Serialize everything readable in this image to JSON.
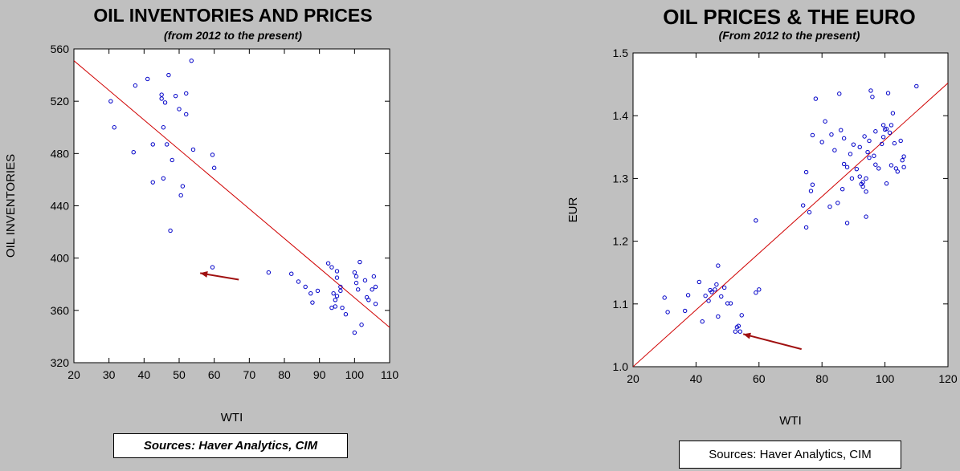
{
  "chart_data": [
    {
      "type": "scatter",
      "title": "OIL INVENTORIES AND PRICES",
      "subtitle": "(from 2012 to the present)",
      "xlabel": "WTI",
      "ylabel": "OIL INVENTORIES",
      "xlim": [
        20,
        110
      ],
      "ylim": [
        320,
        560
      ],
      "xticks": [
        "20",
        "30",
        "40",
        "50",
        "60",
        "70",
        "80",
        "90",
        "100",
        "110"
      ],
      "yticks": [
        "320",
        "360",
        "400",
        "440",
        "480",
        "520",
        "560"
      ],
      "points": [
        [
          53.5,
          551
        ],
        [
          30.5,
          520
        ],
        [
          31.5,
          500
        ],
        [
          37.5,
          532
        ],
        [
          41,
          537
        ],
        [
          37,
          481
        ],
        [
          42.5,
          487
        ],
        [
          45,
          525
        ],
        [
          45,
          522
        ],
        [
          46,
          519
        ],
        [
          47,
          540
        ],
        [
          49,
          524
        ],
        [
          50,
          514
        ],
        [
          52,
          526
        ],
        [
          52,
          510
        ],
        [
          45.5,
          500
        ],
        [
          46.5,
          487
        ],
        [
          48,
          475
        ],
        [
          54,
          483
        ],
        [
          42.5,
          458
        ],
        [
          45.5,
          461
        ],
        [
          51,
          455
        ],
        [
          50.5,
          448
        ],
        [
          47.5,
          421
        ],
        [
          59.5,
          479
        ],
        [
          60,
          469
        ],
        [
          59.5,
          393
        ],
        [
          75.5,
          389
        ],
        [
          82,
          388
        ],
        [
          84,
          382
        ],
        [
          86,
          378
        ],
        [
          87.5,
          373
        ],
        [
          88,
          366
        ],
        [
          89.5,
          375
        ],
        [
          92.5,
          396
        ],
        [
          93.5,
          393
        ],
        [
          94,
          373
        ],
        [
          93.5,
          362
        ],
        [
          94.5,
          368
        ],
        [
          95,
          385
        ],
        [
          95,
          371
        ],
        [
          94.5,
          363
        ],
        [
          96,
          378
        ],
        [
          95,
          390
        ],
        [
          96.5,
          362
        ],
        [
          97.5,
          357
        ],
        [
          100,
          343
        ],
        [
          100.5,
          386
        ],
        [
          100.5,
          381
        ],
        [
          101,
          376
        ],
        [
          101.5,
          397
        ],
        [
          102,
          349
        ],
        [
          103,
          383
        ],
        [
          103.5,
          370
        ],
        [
          104,
          368
        ],
        [
          105,
          376
        ],
        [
          105.5,
          386
        ],
        [
          106,
          365
        ],
        [
          106,
          378
        ],
        [
          100,
          389
        ],
        [
          96,
          375
        ]
      ],
      "trend": [
        [
          20,
          551
        ],
        [
          110,
          347
        ]
      ],
      "arrow": {
        "from": [
          67,
          383.5
        ],
        "to": [
          56,
          388.5
        ]
      }
    },
    {
      "type": "scatter",
      "title": "OIL PRICES & THE EURO",
      "subtitle": "(From 2012 to the present)",
      "xlabel": "WTI",
      "ylabel": "EUR",
      "xlim": [
        20,
        120
      ],
      "ylim": [
        1.0,
        1.5
      ],
      "xticks": [
        "20",
        "40",
        "60",
        "80",
        "100",
        "120"
      ],
      "yticks": [
        "1.0",
        "1.1",
        "1.2",
        "1.3",
        "1.4",
        "1.5"
      ],
      "points": [
        [
          30,
          1.11
        ],
        [
          31,
          1.087
        ],
        [
          36.5,
          1.089
        ],
        [
          37.5,
          1.114
        ],
        [
          41,
          1.135
        ],
        [
          42,
          1.072
        ],
        [
          43,
          1.113
        ],
        [
          44,
          1.105
        ],
        [
          44.5,
          1.122
        ],
        [
          45,
          1.119
        ],
        [
          46,
          1.123
        ],
        [
          46.5,
          1.131
        ],
        [
          47,
          1.161
        ],
        [
          47,
          1.08
        ],
        [
          48,
          1.112
        ],
        [
          49,
          1.126
        ],
        [
          50,
          1.101
        ],
        [
          51,
          1.101
        ],
        [
          52.5,
          1.056
        ],
        [
          53,
          1.063
        ],
        [
          53.5,
          1.065
        ],
        [
          54,
          1.056
        ],
        [
          54.5,
          1.082
        ],
        [
          59,
          1.233
        ],
        [
          59,
          1.118
        ],
        [
          60,
          1.123
        ],
        [
          74,
          1.257
        ],
        [
          75,
          1.31
        ],
        [
          75,
          1.222
        ],
        [
          76,
          1.246
        ],
        [
          76.5,
          1.28
        ],
        [
          77,
          1.29
        ],
        [
          77,
          1.369
        ],
        [
          78,
          1.427
        ],
        [
          80,
          1.358
        ],
        [
          81,
          1.391
        ],
        [
          82.5,
          1.255
        ],
        [
          83,
          1.37
        ],
        [
          84,
          1.345
        ],
        [
          85,
          1.261
        ],
        [
          85.5,
          1.435
        ],
        [
          86,
          1.377
        ],
        [
          86.5,
          1.283
        ],
        [
          87,
          1.364
        ],
        [
          87,
          1.323
        ],
        [
          88,
          1.229
        ],
        [
          88,
          1.318
        ],
        [
          89,
          1.339
        ],
        [
          89.5,
          1.3
        ],
        [
          90,
          1.354
        ],
        [
          91,
          1.315
        ],
        [
          92,
          1.303
        ],
        [
          92.5,
          1.291
        ],
        [
          93,
          1.294
        ],
        [
          93,
          1.287
        ],
        [
          93.5,
          1.367
        ],
        [
          94,
          1.239
        ],
        [
          94,
          1.279
        ],
        [
          94,
          1.3
        ],
        [
          94.5,
          1.342
        ],
        [
          95,
          1.333
        ],
        [
          95,
          1.36
        ],
        [
          95.5,
          1.44
        ],
        [
          96,
          1.43
        ],
        [
          96.5,
          1.336
        ],
        [
          97,
          1.322
        ],
        [
          97,
          1.375
        ],
        [
          98,
          1.316
        ],
        [
          99,
          1.355
        ],
        [
          99.5,
          1.385
        ],
        [
          100,
          1.378
        ],
        [
          100.5,
          1.292
        ],
        [
          100.5,
          1.379
        ],
        [
          101,
          1.436
        ],
        [
          101.5,
          1.373
        ],
        [
          102,
          1.321
        ],
        [
          102,
          1.385
        ],
        [
          102.5,
          1.404
        ],
        [
          103,
          1.356
        ],
        [
          103.5,
          1.316
        ],
        [
          104,
          1.311
        ],
        [
          105,
          1.36
        ],
        [
          105.5,
          1.329
        ],
        [
          106,
          1.335
        ],
        [
          106,
          1.318
        ],
        [
          110,
          1.447
        ],
        [
          99.5,
          1.366
        ],
        [
          92,
          1.35
        ]
      ],
      "trend": [
        [
          20,
          1.0
        ],
        [
          120,
          1.452
        ]
      ],
      "arrow": {
        "from": [
          73.5,
          1.028
        ],
        "to": [
          55,
          1.052
        ]
      }
    }
  ],
  "sources": {
    "left": "Sources:  Haver Analytics, CIM",
    "right": "Sources:  Haver Analytics, CIM"
  },
  "colors": {
    "background": "#c0c0c0",
    "plot_area": "#ffffff",
    "marker": "#0000c8",
    "trendline": "#d00000",
    "arrow": "#a01010"
  }
}
